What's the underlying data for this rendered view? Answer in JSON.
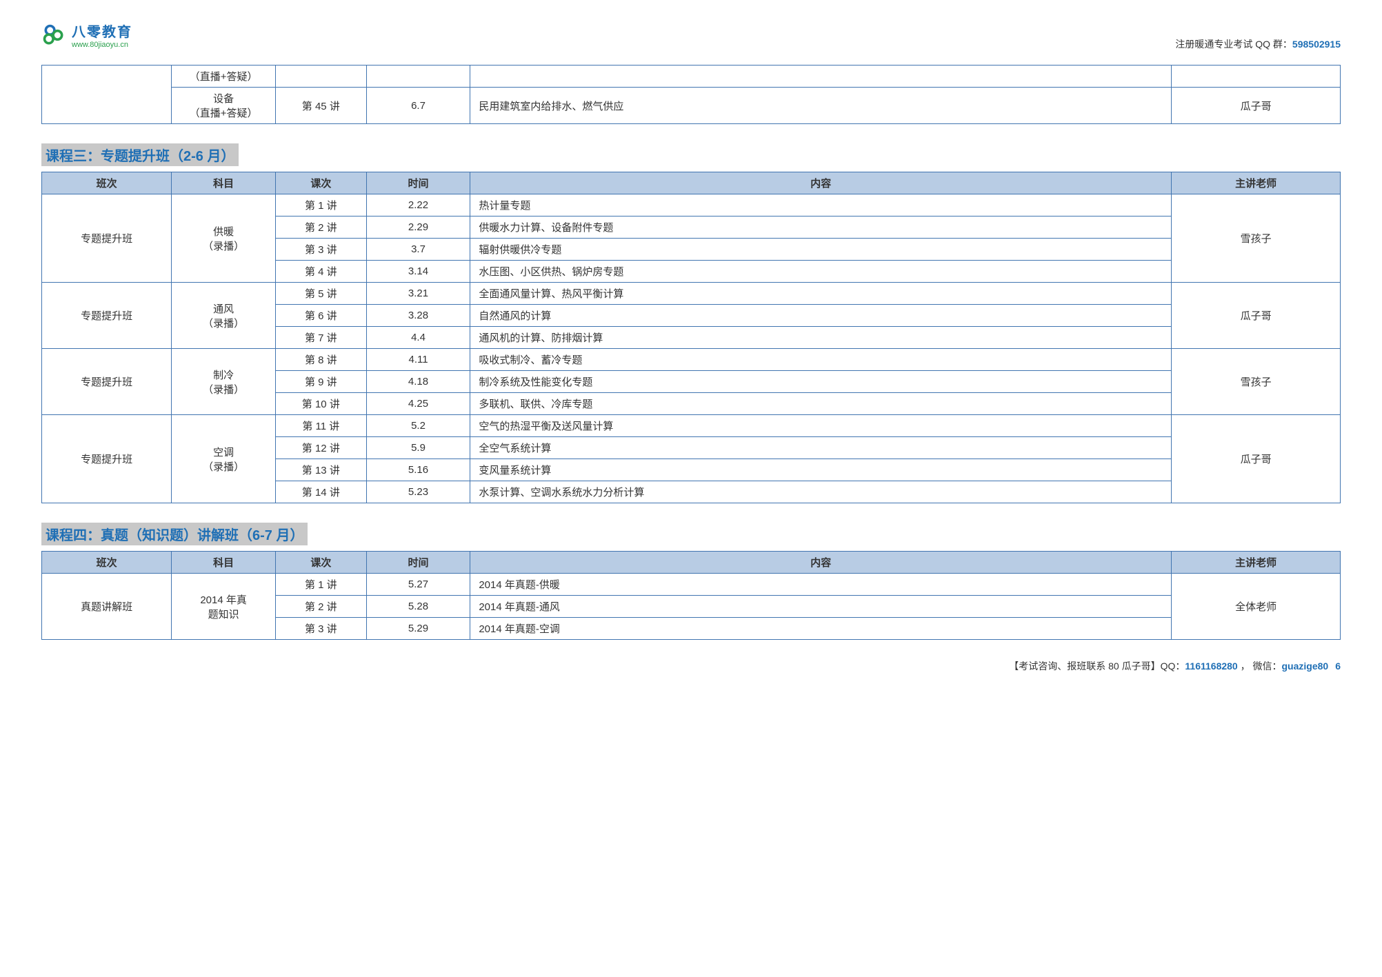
{
  "logo": {
    "main": "八零教育",
    "url": "www.80jiaoyu.cn"
  },
  "topRight": {
    "label": "注册暖通专业考试 QQ 群：",
    "qq": "598502915"
  },
  "columns": {
    "class": "班次",
    "subject": "科目",
    "lesson": "课次",
    "time": "时间",
    "content": "内容",
    "teacher": "主讲老师"
  },
  "topTable": {
    "rows": [
      {
        "subject": "（直播+答疑）",
        "lesson": "",
        "time": "",
        "content": "",
        "teacher": ""
      },
      {
        "subject": "设备\n（直播+答疑）",
        "lesson": "第 45 讲",
        "time": "6.7",
        "content": "民用建筑室内给排水、燃气供应",
        "teacher": "瓜子哥"
      }
    ]
  },
  "section3": {
    "title": "课程三：专题提升班（2-6 月）",
    "groups": [
      {
        "class": "专题提升班",
        "subject": "供暖\n（录播）",
        "teacher": "雪孩子",
        "rows": [
          {
            "lesson": "第 1 讲",
            "time": "2.22",
            "content": "热计量专题"
          },
          {
            "lesson": "第 2 讲",
            "time": "2.29",
            "content": "供暖水力计算、设备附件专题"
          },
          {
            "lesson": "第 3 讲",
            "time": "3.7",
            "content": "辐射供暖供冷专题"
          },
          {
            "lesson": "第 4 讲",
            "time": "3.14",
            "content": "水压图、小区供热、锅炉房专题"
          }
        ]
      },
      {
        "class": "专题提升班",
        "subject": "通风\n（录播）",
        "teacher": "瓜子哥",
        "rows": [
          {
            "lesson": "第 5 讲",
            "time": "3.21",
            "content": "全面通风量计算、热风平衡计算"
          },
          {
            "lesson": "第 6 讲",
            "time": "3.28",
            "content": "自然通风的计算"
          },
          {
            "lesson": "第 7 讲",
            "time": "4.4",
            "content": "通风机的计算、防排烟计算"
          }
        ]
      },
      {
        "class": "专题提升班",
        "subject": "制冷\n（录播）",
        "teacher": "雪孩子",
        "rows": [
          {
            "lesson": "第 8 讲",
            "time": "4.11",
            "content": "吸收式制冷、蓄冷专题"
          },
          {
            "lesson": "第 9 讲",
            "time": "4.18",
            "content": "制冷系统及性能变化专题"
          },
          {
            "lesson": "第 10 讲",
            "time": "4.25",
            "content": "多联机、联供、冷库专题"
          }
        ]
      },
      {
        "class": "专题提升班",
        "subject": "空调\n（录播）",
        "teacher": "瓜子哥",
        "rows": [
          {
            "lesson": "第 11 讲",
            "time": "5.2",
            "content": "空气的热湿平衡及送风量计算"
          },
          {
            "lesson": "第 12 讲",
            "time": "5.9",
            "content": "全空气系统计算"
          },
          {
            "lesson": "第 13 讲",
            "time": "5.16",
            "content": "变风量系统计算"
          },
          {
            "lesson": "第 14 讲",
            "time": "5.23",
            "content": "水泵计算、空调水系统水力分析计算"
          }
        ]
      }
    ]
  },
  "section4": {
    "title": "课程四：真题（知识题）讲解班（6-7 月）",
    "groups": [
      {
        "class": "真题讲解班",
        "subject": "2014 年真\n题知识",
        "teacher": "全体老师",
        "rows": [
          {
            "lesson": "第 1 讲",
            "time": "5.27",
            "content": "2014 年真题-供暖"
          },
          {
            "lesson": "第 2 讲",
            "time": "5.28",
            "content": "2014 年真题-通风"
          },
          {
            "lesson": "第 3 讲",
            "time": "5.29",
            "content": "2014 年真题-空调"
          }
        ]
      }
    ]
  },
  "footer": {
    "prefix": "【考试咨询、报班联系 80 瓜子哥】QQ：",
    "qq": "1161168280",
    "wxLabel": " ， 微信：",
    "wx": "guazige80",
    "page": "6"
  },
  "colors": {
    "border": "#4074b0",
    "headerBg": "#b8cce4",
    "accent": "#1f6fb5",
    "highlightBg": "#c8c8c8",
    "green": "#2aa04d"
  }
}
